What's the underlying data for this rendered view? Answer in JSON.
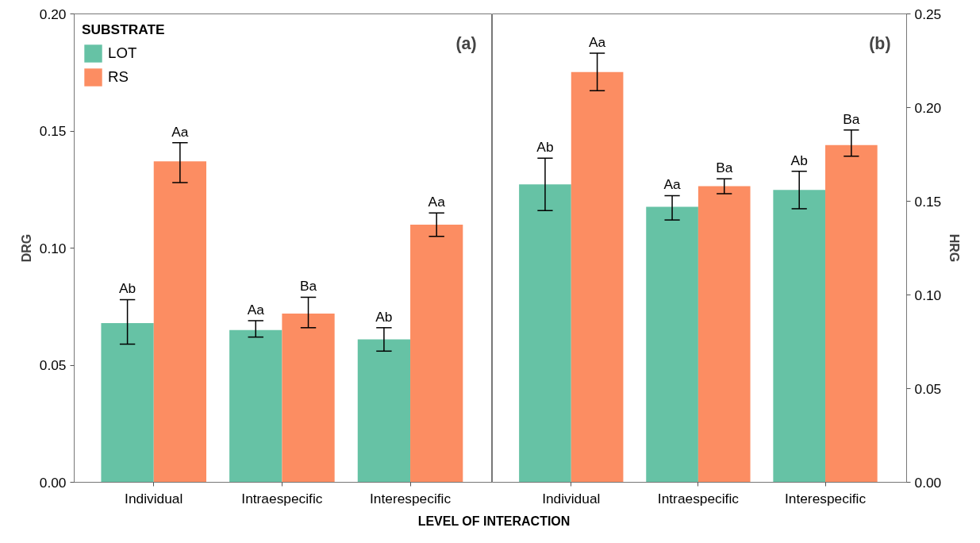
{
  "chart_data": [
    {
      "type": "bar",
      "ylabel": "DRG",
      "xlabel": "LEVEL OF INTERACTION",
      "legend_title": "SUBSTRATE",
      "legend": "top left",
      "grid": false,
      "categories": [
        "Individual",
        "Intraespecific",
        "Interespecific"
      ],
      "ylim": [
        0,
        0.2
      ],
      "yticks": [
        {
          "value": 0,
          "label": "0.00"
        },
        {
          "value": 0.05,
          "label": "0.05"
        },
        {
          "value": 0.1,
          "label": "0.10"
        },
        {
          "value": 0.15,
          "label": "0.15"
        },
        {
          "value": 0.2,
          "label": "0.20"
        }
      ],
      "annotations": [
        {
          "text": "(a)"
        }
      ],
      "series": [
        {
          "name": "LOT",
          "color": "#66c2a5",
          "values": [
            0.068,
            0.065,
            0.061
          ],
          "errors": [
            [
              0.059,
              0.078
            ],
            [
              0.062,
              0.069
            ],
            [
              0.056,
              0.066
            ]
          ],
          "value_labels": [
            "Ab",
            "Aa",
            "Ab"
          ]
        },
        {
          "name": "RS",
          "color": "#fc8d62",
          "values": [
            0.137,
            0.072,
            0.11
          ],
          "errors": [
            [
              0.128,
              0.145
            ],
            [
              0.066,
              0.079
            ],
            [
              0.105,
              0.115
            ]
          ],
          "value_labels": [
            "Aa",
            "Ba",
            "Aa"
          ]
        }
      ]
    },
    {
      "type": "bar",
      "y2label": "HRG",
      "legend": false,
      "grid": false,
      "categories": [
        "Individual",
        "Intraespecific",
        "Interespecific"
      ],
      "y2lim": [
        0,
        0.25
      ],
      "y2ticks": [
        {
          "value": 0,
          "label": "0.00"
        },
        {
          "value": 0.05,
          "label": "0.05"
        },
        {
          "value": 0.1,
          "label": "0.10"
        },
        {
          "value": 0.15,
          "label": "0.15"
        },
        {
          "value": 0.2,
          "label": "0.20"
        },
        {
          "value": 0.25,
          "label": "0.25"
        }
      ],
      "annotations": [
        {
          "text": "(b)"
        }
      ],
      "series": [
        {
          "color": "#66c2a5",
          "axis": "y2",
          "values": [
            0.159,
            0.147,
            0.156
          ],
          "errors": [
            [
              0.145,
              0.173
            ],
            [
              0.14,
              0.153
            ],
            [
              0.146,
              0.166
            ]
          ],
          "value_labels": [
            "Ab",
            "Aa",
            "Ab"
          ]
        },
        {
          "color": "#fc8d62",
          "axis": "y2",
          "values": [
            0.219,
            0.158,
            0.18
          ],
          "errors": [
            [
              0.209,
              0.229
            ],
            [
              0.154,
              0.162
            ],
            [
              0.174,
              0.188
            ]
          ],
          "value_labels": [
            "Aa",
            "Ba",
            "Ba"
          ]
        }
      ]
    }
  ]
}
